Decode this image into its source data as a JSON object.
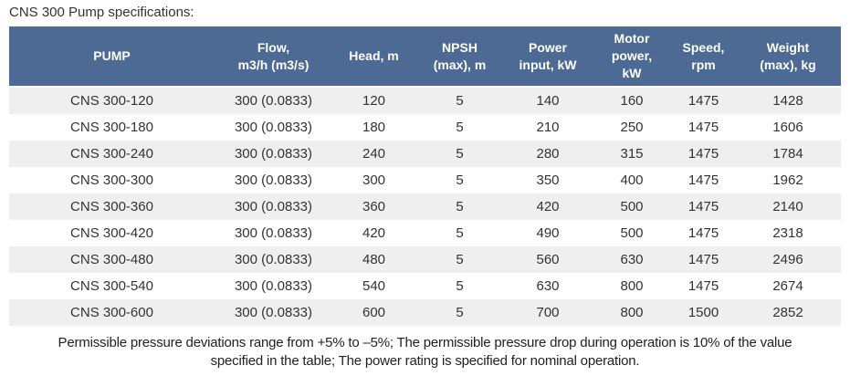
{
  "page": {
    "title": "CNS 300 Pump specifications:",
    "footer_line1": "Permissible pressure deviations range from +5% to –5%; The permissible pressure drop during operation is 10% of the value",
    "footer_line2": "specified in the table; The power rating is specified for nominal operation."
  },
  "colors": {
    "header_bg": "#4c6a94",
    "header_text": "#ffffff",
    "row_alt_bg": "#efefef",
    "row_bg": "#ffffff",
    "body_text": "#333333"
  },
  "table": {
    "columns": [
      "PUMP",
      "Flow,\nm3/h (m3/s)",
      "Head, m",
      "NPSH\n(max), m",
      "Power\ninput, kW",
      "Motor\npower,\nkW",
      "Speed,\nrpm",
      "Weight\n(max), kg"
    ],
    "rows": [
      [
        "CNS 300-120",
        "300 (0.0833)",
        "120",
        "5",
        "140",
        "160",
        "1475",
        "1428"
      ],
      [
        "CNS 300-180",
        "300 (0.0833)",
        "180",
        "5",
        "210",
        "250",
        "1475",
        "1606"
      ],
      [
        "CNS 300-240",
        "300 (0.0833)",
        "240",
        "5",
        "280",
        "315",
        "1475",
        "1784"
      ],
      [
        "CNS 300-300",
        "300 (0.0833)",
        "300",
        "5",
        "350",
        "400",
        "1475",
        "1962"
      ],
      [
        "CNS 300-360",
        "300 (0.0833)",
        "360",
        "5",
        "420",
        "500",
        "1475",
        "2140"
      ],
      [
        "CNS 300-420",
        "300 (0.0833)",
        "420",
        "5",
        "490",
        "500",
        "1475",
        "2318"
      ],
      [
        "CNS 300-480",
        "300 (0.0833)",
        "480",
        "5",
        "560",
        "630",
        "1475",
        "2496"
      ],
      [
        "CNS 300-540",
        "300 (0.0833)",
        "540",
        "5",
        "630",
        "800",
        "1475",
        "2674"
      ],
      [
        "CNS 300-600",
        "300 (0.0833)",
        "600",
        "5",
        "700",
        "800",
        "1500",
        "2852"
      ]
    ]
  }
}
